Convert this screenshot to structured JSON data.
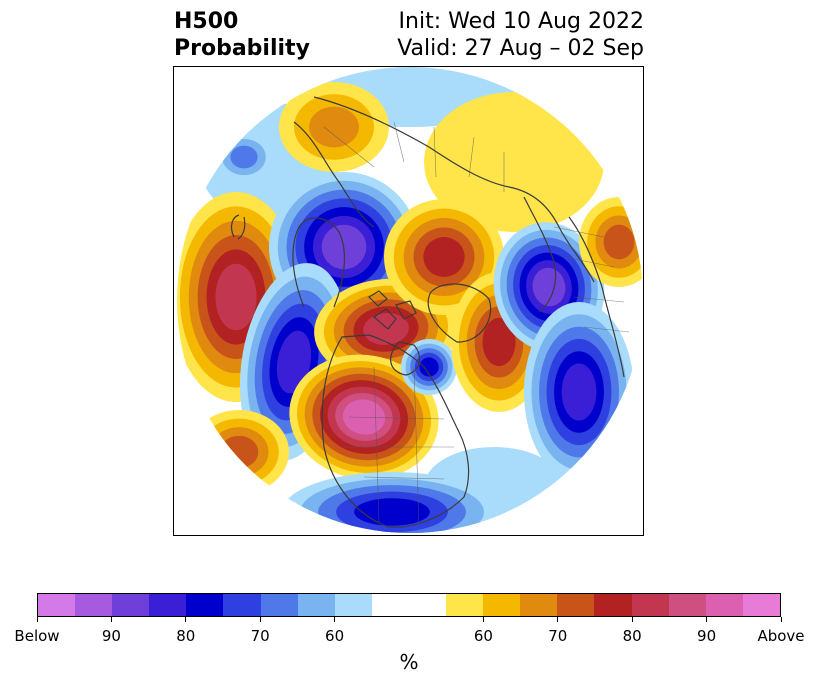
{
  "title": {
    "line1": "H500",
    "line2": "Probability"
  },
  "init": {
    "line1": "Init: Wed 10 Aug 2022",
    "line2": "Valid: 27 Aug – 02 Sep"
  },
  "colorbar": {
    "unit": "%",
    "colors": [
      "#d47ae8",
      "#a55ae0",
      "#6e3fd9",
      "#3b1fd6",
      "#0000cd",
      "#2f40e0",
      "#4f78e8",
      "#7ab4f0",
      "#a9dbfa",
      "#ffffff",
      "#ffffff",
      "#ffe54a",
      "#f5b800",
      "#e08a10",
      "#c8541a",
      "#b22222",
      "#c33650",
      "#cf4f80",
      "#db60b0",
      "#e87ad8"
    ],
    "ticks": [
      {
        "label": "Below"
      },
      {
        "label": "90"
      },
      {
        "label": "80"
      },
      {
        "label": "70"
      },
      {
        "label": "60"
      },
      {
        "label": "60"
      },
      {
        "label": "70"
      },
      {
        "label": "80"
      },
      {
        "label": "90"
      },
      {
        "label": "Above"
      }
    ]
  },
  "map": {
    "projection": "polar-stereographic-north",
    "blobs": [
      {
        "kind": "above",
        "levels": 6
      },
      {
        "kind": "below",
        "levels": 7
      },
      {
        "kind": "below",
        "levels": 6
      },
      {
        "kind": "above",
        "levels": 6
      },
      {
        "kind": "above",
        "levels": 8
      },
      {
        "kind": "below",
        "levels": 5
      },
      {
        "kind": "above",
        "levels": 5
      },
      {
        "kind": "above",
        "levels": 5
      },
      {
        "kind": "below",
        "levels": 7
      },
      {
        "kind": "below",
        "levels": 6
      },
      {
        "kind": "below",
        "levels": 5
      },
      {
        "kind": "above",
        "levels": 4
      },
      {
        "kind": "above",
        "levels": 4
      },
      {
        "kind": "above",
        "levels": 3
      },
      {
        "kind": "below",
        "levels": 3
      }
    ]
  }
}
